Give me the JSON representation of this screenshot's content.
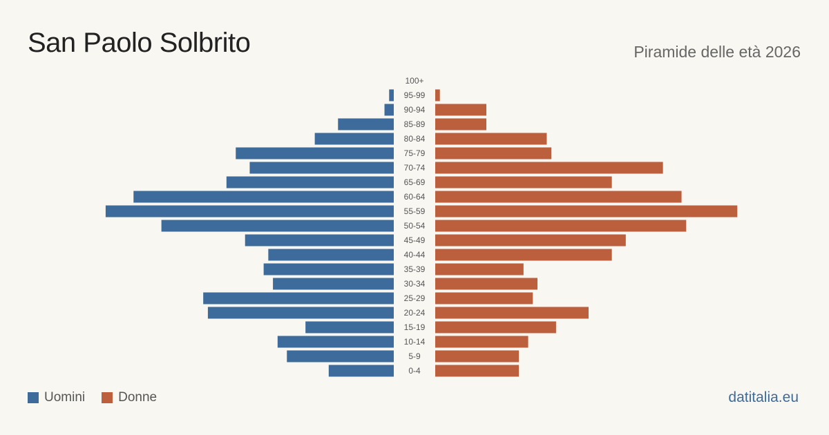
{
  "header": {
    "title": "San Paolo Solbrito",
    "subtitle": "Piramide delle età 2026"
  },
  "legend": {
    "men_label": "Uomini",
    "women_label": "Donne"
  },
  "footer": {
    "brand": "datitalia.eu"
  },
  "colors": {
    "men": "#3d6b9b",
    "women": "#bc5f3d",
    "background": "#f9f7f2"
  },
  "chart_data": {
    "type": "bar",
    "orientation": "population-pyramid",
    "title": "San Paolo Solbrito",
    "subtitle": "Piramide delle età 2026",
    "categories": [
      "100+",
      "95-99",
      "90-94",
      "85-89",
      "80-84",
      "75-79",
      "70-74",
      "65-69",
      "60-64",
      "55-59",
      "50-54",
      "45-49",
      "40-44",
      "35-39",
      "30-34",
      "25-29",
      "20-24",
      "15-19",
      "10-14",
      "5-9",
      "0-4"
    ],
    "series": [
      {
        "name": "Uomini",
        "values": [
          0,
          1,
          2,
          12,
          17,
          34,
          31,
          36,
          56,
          62,
          50,
          32,
          27,
          28,
          26,
          41,
          40,
          19,
          25,
          23,
          14
        ]
      },
      {
        "name": "Donne",
        "values": [
          0,
          1,
          11,
          11,
          24,
          25,
          49,
          38,
          53,
          65,
          54,
          41,
          38,
          19,
          22,
          21,
          33,
          26,
          20,
          18,
          18
        ]
      }
    ],
    "grid": false,
    "legend_position": "bottom-left"
  }
}
